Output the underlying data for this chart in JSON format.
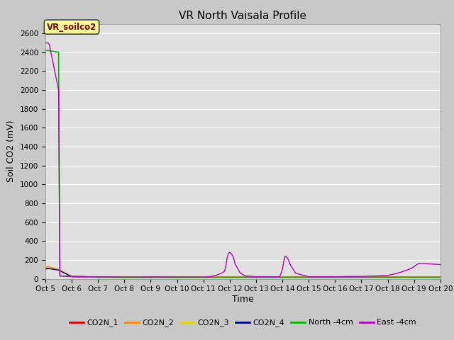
{
  "title": "VR North Vaisala Profile",
  "ylabel": "Soil CO2 (mV)",
  "xlabel": "Time",
  "xlim_start": 5,
  "xlim_end": 20,
  "ylim": [
    0,
    2700
  ],
  "yticks": [
    0,
    200,
    400,
    600,
    800,
    1000,
    1200,
    1400,
    1600,
    1800,
    2000,
    2200,
    2400,
    2600
  ],
  "xtick_labels": [
    "Oct 5",
    "Oct 6",
    "Oct 7",
    "Oct 8",
    "Oct 9",
    "Oct 10",
    "Oct 11",
    "Oct 12",
    "Oct 13",
    "Oct 14",
    "Oct 15",
    "Oct 16",
    "Oct 17",
    "Oct 18",
    "Oct 19",
    "Oct 20"
  ],
  "xtick_positions": [
    5,
    6,
    7,
    8,
    9,
    10,
    11,
    12,
    13,
    14,
    15,
    16,
    17,
    18,
    19,
    20
  ],
  "fig_bg_color": "#c8c8c8",
  "plot_bg_color": "#e0e0e0",
  "grid_color": "#ffffff",
  "annotation_text": "VR_soilco2",
  "annotation_color": "#8b0000",
  "annotation_bg": "#ffff99",
  "annotation_border": "#444444",
  "legend_entries": [
    "CO2N_1",
    "CO2N_2",
    "CO2N_3",
    "CO2N_4",
    "North -4cm",
    "East -4cm"
  ],
  "legend_colors": [
    "#dd0000",
    "#ff8800",
    "#dddd00",
    "#000088",
    "#00bb00",
    "#bb00bb"
  ],
  "series": {
    "CO2N_1": {
      "x": [
        5.0,
        5.1,
        5.15,
        5.5,
        6.0,
        7.0,
        8.0,
        9.0,
        10.0,
        11.0,
        12.0,
        13.0,
        14.0,
        15.0,
        16.0,
        17.0,
        18.0,
        19.0,
        20.0
      ],
      "y": [
        100,
        110,
        108,
        95,
        25,
        20,
        18,
        18,
        18,
        18,
        18,
        18,
        18,
        18,
        18,
        18,
        18,
        18,
        18
      ],
      "color": "#dd0000",
      "lw": 1.0
    },
    "CO2N_2": {
      "x": [
        5.0,
        5.1,
        5.15,
        5.5,
        6.0,
        7.0,
        8.0,
        9.0,
        10.0,
        11.0,
        12.0,
        13.0,
        14.0,
        15.0,
        16.0,
        17.0,
        18.0,
        19.0,
        20.0
      ],
      "y": [
        120,
        130,
        125,
        100,
        28,
        22,
        20,
        20,
        20,
        20,
        20,
        20,
        20,
        20,
        20,
        20,
        20,
        20,
        20
      ],
      "color": "#ff8800",
      "lw": 1.0
    },
    "CO2N_3": {
      "x": [
        5.0,
        5.1,
        5.15,
        5.5,
        6.0,
        7.0,
        8.0,
        9.0,
        10.0,
        11.0,
        12.0,
        13.0,
        14.0,
        15.0,
        16.0,
        17.0,
        18.0,
        19.0,
        20.0
      ],
      "y": [
        110,
        118,
        112,
        95,
        25,
        20,
        18,
        18,
        18,
        18,
        18,
        18,
        18,
        18,
        18,
        18,
        18,
        18,
        18
      ],
      "color": "#dddd00",
      "lw": 1.0
    },
    "CO2N_4": {
      "x": [
        5.0,
        5.1,
        5.15,
        5.5,
        6.0,
        7.0,
        8.0,
        9.0,
        10.0,
        11.0,
        12.0,
        13.0,
        14.0,
        15.0,
        16.0,
        17.0,
        18.0,
        19.0,
        20.0
      ],
      "y": [
        105,
        112,
        108,
        92,
        22,
        18,
        16,
        16,
        16,
        16,
        16,
        16,
        16,
        16,
        16,
        16,
        16,
        16,
        16
      ],
      "color": "#000088",
      "lw": 1.0
    },
    "North_4cm": {
      "x": [
        5.0,
        5.05,
        5.1,
        5.12,
        5.15,
        5.5,
        5.55,
        6.0,
        7.0,
        8.0,
        9.0,
        10.0,
        11.0,
        12.0,
        13.0,
        14.0,
        15.0,
        16.0,
        17.0,
        18.0,
        19.0,
        20.0
      ],
      "y": [
        2415,
        2418,
        2420,
        2418,
        2415,
        2400,
        30,
        25,
        15,
        15,
        15,
        15,
        15,
        15,
        15,
        15,
        15,
        15,
        15,
        15,
        15,
        15
      ],
      "color": "#00bb00",
      "lw": 1.2
    },
    "East_4cm": {
      "x": [
        5.0,
        5.02,
        5.05,
        5.08,
        5.1,
        5.12,
        5.15,
        5.5,
        5.55,
        6.0,
        7.0,
        7.5,
        8.0,
        8.5,
        9.0,
        9.5,
        10.0,
        10.5,
        11.0,
        11.3,
        11.5,
        11.7,
        11.8,
        11.85,
        11.9,
        11.95,
        12.0,
        12.05,
        12.1,
        12.15,
        12.2,
        12.4,
        12.6,
        13.0,
        13.5,
        13.9,
        13.95,
        14.0,
        14.05,
        14.1,
        14.2,
        14.3,
        14.5,
        15.0,
        15.5,
        16.0,
        16.5,
        17.0,
        17.5,
        18.0,
        18.3,
        18.5,
        18.7,
        18.9,
        19.0,
        19.1,
        19.2,
        19.5,
        20.0
      ],
      "y": [
        2490,
        2495,
        2500,
        2498,
        2495,
        2490,
        2480,
        2000,
        30,
        25,
        20,
        20,
        18,
        18,
        20,
        20,
        18,
        18,
        18,
        25,
        40,
        60,
        80,
        130,
        220,
        270,
        280,
        270,
        250,
        220,
        160,
        60,
        30,
        22,
        22,
        22,
        60,
        100,
        180,
        240,
        220,
        150,
        60,
        22,
        22,
        22,
        25,
        25,
        30,
        35,
        55,
        70,
        90,
        110,
        130,
        150,
        165,
        160,
        150
      ],
      "color": "#bb00bb",
      "lw": 1.0
    }
  }
}
